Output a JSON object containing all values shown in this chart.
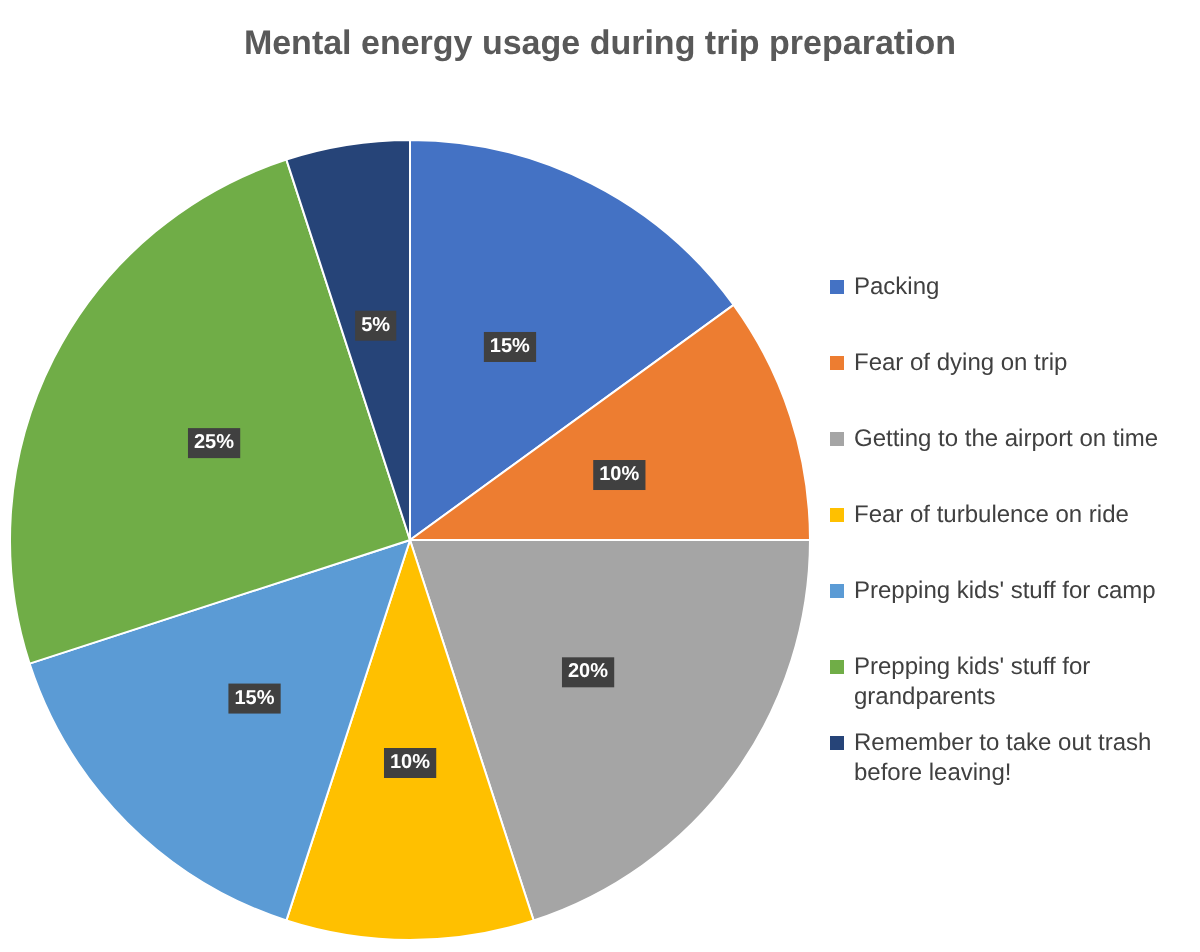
{
  "chart_data": {
    "type": "pie",
    "title": "Mental energy usage during trip preparation",
    "categories": [
      "Packing",
      "Fear of dying on trip",
      "Getting to the airport on time",
      "Fear of turbulence on ride",
      "Prepping kids' stuff for camp",
      "Prepping kids' stuff for grandparents",
      "Remember to take out trash before leaving!"
    ],
    "values": [
      15,
      10,
      20,
      10,
      15,
      25,
      5
    ],
    "colors": [
      "#4472c4",
      "#ed7d31",
      "#a5a5a5",
      "#ffc000",
      "#5b9bd5",
      "#70ad47",
      "#264478"
    ],
    "value_labels": [
      "15%",
      "10%",
      "20%",
      "10%",
      "15%",
      "25%",
      "5%"
    ],
    "legend": "right"
  }
}
